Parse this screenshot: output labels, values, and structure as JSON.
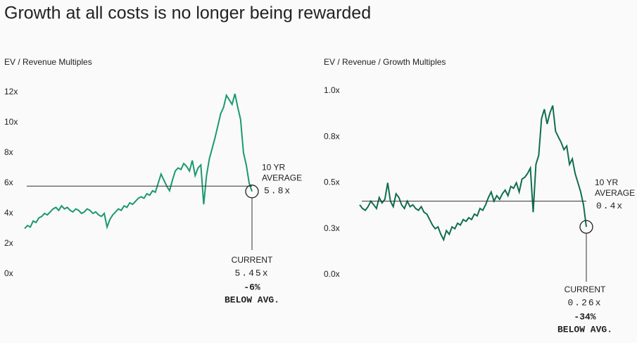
{
  "title": "Growth at all costs is no longer being rewarded",
  "chart_data": [
    {
      "type": "line",
      "title": "EV / Revenue Multiples",
      "color": "#1a9a6c",
      "values": [
        3.0,
        3.2,
        3.1,
        3.5,
        3.4,
        3.7,
        3.8,
        4.0,
        3.9,
        4.1,
        4.3,
        4.4,
        4.2,
        4.5,
        4.3,
        4.4,
        4.2,
        4.1,
        4.3,
        4.2,
        4.0,
        4.1,
        4.3,
        4.2,
        4.0,
        4.1,
        3.9,
        3.8,
        4.0,
        3.1,
        3.6,
        3.9,
        4.1,
        4.3,
        4.2,
        4.5,
        4.4,
        4.7,
        4.6,
        4.8,
        5.0,
        5.1,
        5.0,
        5.3,
        5.2,
        5.5,
        5.4,
        6.0,
        6.6,
        6.2,
        5.8,
        5.5,
        6.2,
        6.8,
        7.0,
        6.9,
        7.3,
        7.1,
        6.8,
        7.5,
        6.5,
        7.0,
        7.2,
        4.6,
        6.5,
        7.6,
        8.3,
        9.0,
        9.8,
        10.6,
        11.0,
        11.8,
        11.5,
        11.2,
        11.9,
        11.0,
        10.2,
        8.0,
        7.2,
        6.0,
        5.45
      ],
      "ylim": [
        0,
        12
      ],
      "yticks": [
        {
          "value": 0,
          "label": "0x"
        },
        {
          "value": 2,
          "label": "2x"
        },
        {
          "value": 4,
          "label": "4x"
        },
        {
          "value": 6,
          "label": "6x"
        },
        {
          "value": 8,
          "label": "8x"
        },
        {
          "value": 10,
          "label": "10x"
        },
        {
          "value": 12,
          "label": "12x"
        }
      ],
      "average_caption": [
        "10 YR",
        "AVERAGE"
      ],
      "average": 5.8,
      "average_label": "5.8x",
      "current_caption": "CURRENT",
      "current": 5.45,
      "current_label": "5.45x",
      "change": -6,
      "change_label": "-6%",
      "change_caption": "BELOW AVG."
    },
    {
      "type": "line",
      "title": "EV / Revenue / Growth Multiples",
      "color": "#0f6e4e",
      "values": [
        0.38,
        0.36,
        0.35,
        0.37,
        0.4,
        0.38,
        0.36,
        0.42,
        0.39,
        0.41,
        0.5,
        0.4,
        0.37,
        0.44,
        0.42,
        0.38,
        0.36,
        0.4,
        0.37,
        0.38,
        0.36,
        0.35,
        0.37,
        0.34,
        0.33,
        0.3,
        0.27,
        0.25,
        0.26,
        0.22,
        0.19,
        0.24,
        0.22,
        0.26,
        0.25,
        0.28,
        0.27,
        0.3,
        0.29,
        0.31,
        0.3,
        0.33,
        0.32,
        0.36,
        0.35,
        0.38,
        0.42,
        0.45,
        0.4,
        0.43,
        0.41,
        0.44,
        0.46,
        0.43,
        0.48,
        0.47,
        0.5,
        0.45,
        0.52,
        0.53,
        0.55,
        0.58,
        0.34,
        0.6,
        0.65,
        0.85,
        0.9,
        0.82,
        0.88,
        0.92,
        0.78,
        0.75,
        0.72,
        0.68,
        0.7,
        0.6,
        0.63,
        0.55,
        0.5,
        0.45,
        0.38,
        0.26
      ],
      "ylim": [
        0,
        1
      ],
      "yticks": [
        {
          "value": 0,
          "label": "0.0x"
        },
        {
          "value": 0.25,
          "label": "0.3x"
        },
        {
          "value": 0.5,
          "label": "0.5x"
        },
        {
          "value": 0.75,
          "label": "0.8x"
        },
        {
          "value": 1,
          "label": "1.0x"
        }
      ],
      "average_caption": [
        "10 YR",
        "AVERAGE"
      ],
      "average": 0.4,
      "average_label": "0.4x",
      "current_caption": "CURRENT",
      "current": 0.26,
      "current_label": "0.26x",
      "change": -34,
      "change_label": "-34%",
      "change_caption": "BELOW AVG."
    }
  ]
}
